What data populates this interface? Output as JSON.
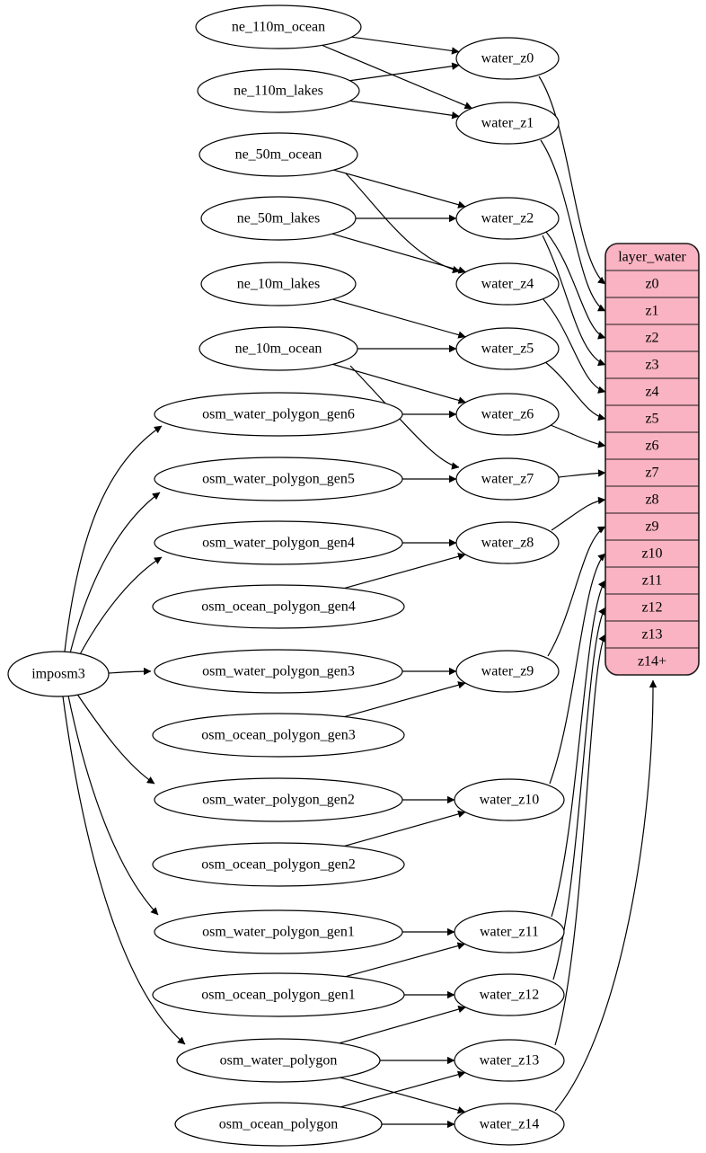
{
  "diagram": {
    "colors": {
      "background": "#ffffff",
      "node_fill": "#ffffff",
      "node_stroke": "#000000",
      "edge_color": "#000000",
      "record_fill": "#f9b3c2",
      "record_stroke": "#1f1a1c",
      "text_color": "#000000"
    },
    "nodes": [
      {
        "id": "ne_110m_ocean",
        "label": "ne_110m_ocean",
        "kind": "source"
      },
      {
        "id": "ne_110m_lakes",
        "label": "ne_110m_lakes",
        "kind": "source"
      },
      {
        "id": "ne_50m_ocean",
        "label": "ne_50m_ocean",
        "kind": "source"
      },
      {
        "id": "ne_50m_lakes",
        "label": "ne_50m_lakes",
        "kind": "source"
      },
      {
        "id": "ne_10m_lakes",
        "label": "ne_10m_lakes",
        "kind": "source"
      },
      {
        "id": "ne_10m_ocean",
        "label": "ne_10m_ocean",
        "kind": "source"
      },
      {
        "id": "osm_water_polygon_gen6",
        "label": "osm_water_polygon_gen6",
        "kind": "source"
      },
      {
        "id": "osm_water_polygon_gen5",
        "label": "osm_water_polygon_gen5",
        "kind": "source"
      },
      {
        "id": "osm_water_polygon_gen4",
        "label": "osm_water_polygon_gen4",
        "kind": "source"
      },
      {
        "id": "osm_ocean_polygon_gen4",
        "label": "osm_ocean_polygon_gen4",
        "kind": "source"
      },
      {
        "id": "osm_water_polygon_gen3",
        "label": "osm_water_polygon_gen3",
        "kind": "source"
      },
      {
        "id": "osm_ocean_polygon_gen3",
        "label": "osm_ocean_polygon_gen3",
        "kind": "source"
      },
      {
        "id": "osm_water_polygon_gen2",
        "label": "osm_water_polygon_gen2",
        "kind": "source"
      },
      {
        "id": "osm_ocean_polygon_gen2",
        "label": "osm_ocean_polygon_gen2",
        "kind": "source"
      },
      {
        "id": "osm_water_polygon_gen1",
        "label": "osm_water_polygon_gen1",
        "kind": "source"
      },
      {
        "id": "osm_ocean_polygon_gen1",
        "label": "osm_ocean_polygon_gen1",
        "kind": "source"
      },
      {
        "id": "osm_water_polygon",
        "label": "osm_water_polygon",
        "kind": "source"
      },
      {
        "id": "osm_ocean_polygon",
        "label": "osm_ocean_polygon",
        "kind": "source"
      },
      {
        "id": "imposm3",
        "label": "imposm3",
        "kind": "importer"
      },
      {
        "id": "water_z0",
        "label": "water_z0",
        "kind": "transform"
      },
      {
        "id": "water_z1",
        "label": "water_z1",
        "kind": "transform"
      },
      {
        "id": "water_z2",
        "label": "water_z2",
        "kind": "transform"
      },
      {
        "id": "water_z4",
        "label": "water_z4",
        "kind": "transform"
      },
      {
        "id": "water_z5",
        "label": "water_z5",
        "kind": "transform"
      },
      {
        "id": "water_z6",
        "label": "water_z6",
        "kind": "transform"
      },
      {
        "id": "water_z7",
        "label": "water_z7",
        "kind": "transform"
      },
      {
        "id": "water_z8",
        "label": "water_z8",
        "kind": "transform"
      },
      {
        "id": "water_z9",
        "label": "water_z9",
        "kind": "transform"
      },
      {
        "id": "water_z10",
        "label": "water_z10",
        "kind": "transform"
      },
      {
        "id": "water_z11",
        "label": "water_z11",
        "kind": "transform"
      },
      {
        "id": "water_z12",
        "label": "water_z12",
        "kind": "transform"
      },
      {
        "id": "water_z13",
        "label": "water_z13",
        "kind": "transform"
      },
      {
        "id": "water_z14",
        "label": "water_z14",
        "kind": "transform"
      }
    ],
    "record": {
      "id": "layer_water",
      "title": "layer_water",
      "rows": [
        "z0",
        "z1",
        "z2",
        "z3",
        "z4",
        "z5",
        "z6",
        "z7",
        "z8",
        "z9",
        "z10",
        "z11",
        "z12",
        "z13",
        "z14+"
      ]
    },
    "edges": [
      [
        "ne_110m_ocean",
        "water_z0"
      ],
      [
        "ne_110m_ocean",
        "water_z1"
      ],
      [
        "ne_110m_lakes",
        "water_z0"
      ],
      [
        "ne_110m_lakes",
        "water_z1"
      ],
      [
        "ne_50m_ocean",
        "water_z2"
      ],
      [
        "ne_50m_ocean",
        "water_z4"
      ],
      [
        "ne_50m_lakes",
        "water_z2"
      ],
      [
        "ne_50m_lakes",
        "water_z4"
      ],
      [
        "ne_10m_lakes",
        "water_z5"
      ],
      [
        "ne_10m_ocean",
        "water_z5"
      ],
      [
        "ne_10m_ocean",
        "water_z6"
      ],
      [
        "ne_10m_ocean",
        "water_z7"
      ],
      [
        "imposm3",
        "osm_water_polygon_gen6"
      ],
      [
        "imposm3",
        "osm_water_polygon_gen5"
      ],
      [
        "imposm3",
        "osm_water_polygon_gen4"
      ],
      [
        "imposm3",
        "osm_water_polygon_gen3"
      ],
      [
        "imposm3",
        "osm_water_polygon_gen2"
      ],
      [
        "imposm3",
        "osm_water_polygon_gen1"
      ],
      [
        "imposm3",
        "osm_water_polygon"
      ],
      [
        "osm_water_polygon_gen6",
        "water_z6"
      ],
      [
        "osm_water_polygon_gen5",
        "water_z7"
      ],
      [
        "osm_water_polygon_gen4",
        "water_z8"
      ],
      [
        "osm_ocean_polygon_gen4",
        "water_z8"
      ],
      [
        "osm_water_polygon_gen3",
        "water_z9"
      ],
      [
        "osm_ocean_polygon_gen3",
        "water_z9"
      ],
      [
        "osm_water_polygon_gen2",
        "water_z10"
      ],
      [
        "osm_ocean_polygon_gen2",
        "water_z10"
      ],
      [
        "osm_water_polygon_gen1",
        "water_z11"
      ],
      [
        "osm_ocean_polygon_gen1",
        "water_z11"
      ],
      [
        "osm_ocean_polygon_gen1",
        "water_z12"
      ],
      [
        "osm_water_polygon",
        "water_z12"
      ],
      [
        "osm_water_polygon",
        "water_z13"
      ],
      [
        "osm_water_polygon",
        "water_z14"
      ],
      [
        "osm_ocean_polygon",
        "water_z13"
      ],
      [
        "osm_ocean_polygon",
        "water_z14"
      ],
      [
        "water_z0",
        "layer_water.z0"
      ],
      [
        "water_z1",
        "layer_water.z1"
      ],
      [
        "water_z2",
        "layer_water.z2"
      ],
      [
        "water_z2",
        "layer_water.z3"
      ],
      [
        "water_z4",
        "layer_water.z4"
      ],
      [
        "water_z5",
        "layer_water.z5"
      ],
      [
        "water_z6",
        "layer_water.z6"
      ],
      [
        "water_z7",
        "layer_water.z7"
      ],
      [
        "water_z8",
        "layer_water.z8"
      ],
      [
        "water_z9",
        "layer_water.z9"
      ],
      [
        "water_z10",
        "layer_water.z10"
      ],
      [
        "water_z11",
        "layer_water.z11"
      ],
      [
        "water_z12",
        "layer_water.z12"
      ],
      [
        "water_z13",
        "layer_water.z13"
      ],
      [
        "water_z14",
        "layer_water.z14+"
      ]
    ]
  }
}
